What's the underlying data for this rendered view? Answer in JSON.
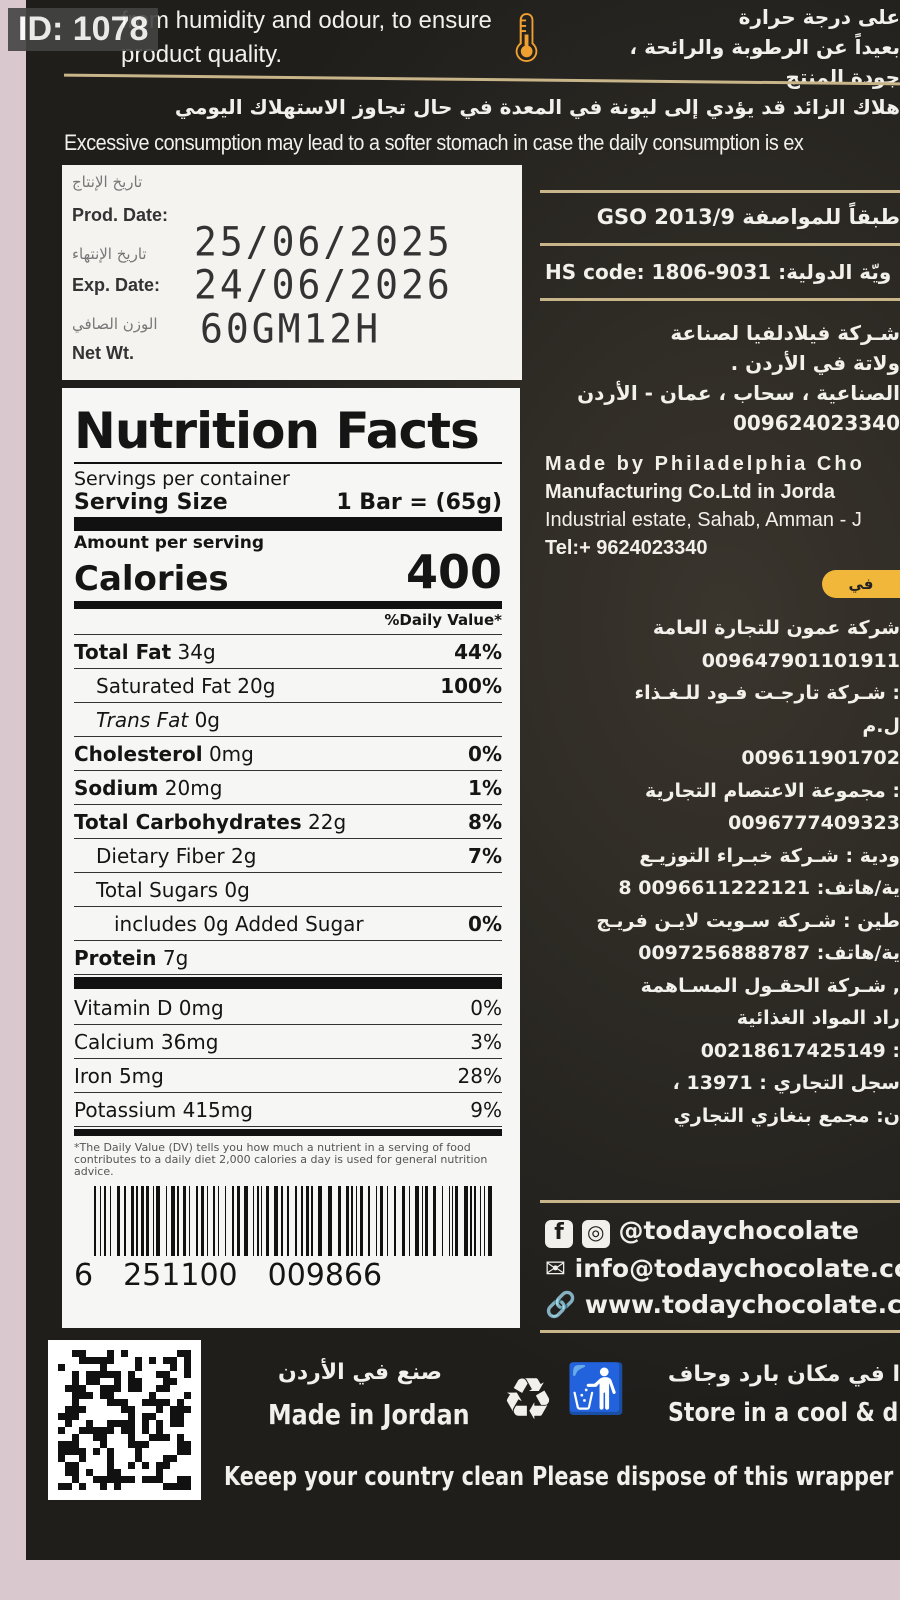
{
  "overlay_id": "ID: 1078",
  "top": {
    "en_storage": [
      "from humidity and odour, to ensure",
      "product quality."
    ],
    "ar_storage": [
      "على درجة حرارة",
      "بعيداً عن الرطوبة والرائحة ،",
      "جودة المنتج"
    ],
    "ar_warning": "هلاك الزائد قد يؤدي إلى ليونة في المعدة في حال تجاوز الاستهلاك اليومي",
    "en_warning": "Excessive consumption may lead to a softer stomach in case the daily consumption is ex"
  },
  "dates": {
    "prod_ar": "تاريخ الإنتاج",
    "prod_label": "Prod. Date:",
    "exp_ar": "تاريخ الإنتهاء",
    "exp_label": "Exp. Date:",
    "net_ar": "الوزن الصافي",
    "net_label": "Net Wt.",
    "prod_value": "25/06/2025",
    "exp_value": "24/06/2026",
    "net_value": "60GM12H"
  },
  "nutrition": {
    "title": "Nutrition Facts",
    "servings": "Servings per container",
    "serving_size_label": "Serving Size",
    "serving_size_value": "1 Bar = (65g)",
    "amount_per_serving": "Amount per serving",
    "calories_label": "Calories",
    "calories_value": "400",
    "dv_header": "%Daily Value*",
    "rows": [
      {
        "name": "Total Fat",
        "amount": "34g",
        "dv": "44%",
        "bold": true,
        "indent": 0
      },
      {
        "name": "Saturated Fat",
        "amount": "20g",
        "dv": "100%",
        "bold": false,
        "indent": 1
      },
      {
        "name": "Trans Fat",
        "amount": "0g",
        "dv": "",
        "bold": false,
        "indent": 1
      },
      {
        "name": "Cholesterol",
        "amount": "0mg",
        "dv": "0%",
        "bold": true,
        "indent": 0
      },
      {
        "name": "Sodium",
        "amount": "20mg",
        "dv": "1%",
        "bold": true,
        "indent": 0
      },
      {
        "name": "Total Carbohydrates",
        "amount": "22g",
        "dv": "8%",
        "bold": true,
        "indent": 0
      },
      {
        "name": "Dietary Fiber",
        "amount": "2g",
        "dv": "7%",
        "bold": false,
        "indent": 1
      },
      {
        "name": "Total Sugars",
        "amount": "0g",
        "dv": "",
        "bold": false,
        "indent": 1
      },
      {
        "name": "includes 0g Added Sugar",
        "amount": "",
        "dv": "0%",
        "bold": false,
        "indent": 2
      },
      {
        "name": "Protein",
        "amount": "7g",
        "dv": "",
        "bold": true,
        "indent": 0
      }
    ],
    "vitamins": [
      {
        "name": "Vitamin D",
        "amount": "0mg",
        "dv": "0%"
      },
      {
        "name": "Calcium",
        "amount": "36mg",
        "dv": "3%"
      },
      {
        "name": "Iron",
        "amount": "5mg",
        "dv": "28%"
      },
      {
        "name": "Potassium",
        "amount": "415mg",
        "dv": "9%"
      }
    ],
    "footnote": "*The Daily Value (DV) tells you how much a nutrient in a serving of food contributes to a daily diet 2,000 calories a day is used for general nutrition advice."
  },
  "barcode": {
    "digits": [
      "6",
      "251100",
      "009866"
    ]
  },
  "right": {
    "gso": "طبقاً للمواصفة GSO 2013/9",
    "hs": "HS code: 1806-9031 :ويّة الدولية",
    "ar_maker": [
      "شـركة فيلادلفيا لصناعة",
      "ولاتة في الأردن .",
      "الصناعية ، سحاب ، عمان - الأردن",
      "009624023340"
    ],
    "en_maker": [
      "Made by Philadelphia Cho",
      "Manufacturing Co.Ltd in Jorda",
      "Industrial estate, Sahab, Amman - J",
      "Tel:+ 9624023340"
    ],
    "badge": "في",
    "distributors": [
      "شركة عمون للتجارة العامة",
      "009647901101911",
      ": شـركة تارجـت فـود للـغـذاء",
      "ل.م",
      "009611901702",
      ": مجموعة الاعتصام التجارية",
      "0096777409323",
      "ودية : شـركة خبـراء التوزيـع",
      "ية/هاتف: 0096611222121 8",
      "طين : شـركة سـويت لايـن فريـج",
      "ية/هاتف: 0097256888787",
      ", شـركة الحقـول المسـاهمة",
      "راد المواد الغذائية",
      ": 00218617425149",
      "سجل التجاري : 13971 ،",
      "ن: مجمع بنغازي التجاري"
    ],
    "social": "@todaychocolate",
    "email": "info@todaychocolate.co",
    "web": "www.todaychocolate.co"
  },
  "bottom": {
    "made_ar": "صنع في الأردن",
    "made_en": "Made in Jordan",
    "keep_clean": "Keeep your country clean",
    "store_ar": "ا في مكان بارد وجاف",
    "store_en": "Store in a cool & dry",
    "dispose": "Please dispose of this wrapper p"
  },
  "colors": {
    "package": "#1f1e1b",
    "gold_rule": "#c9b58a",
    "badge": "#f0b73a",
    "icon_orange": "#f0a030"
  }
}
